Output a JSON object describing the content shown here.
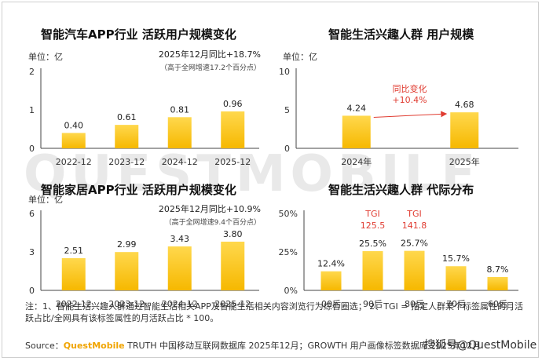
{
  "watermark": "QUESTMOBILE",
  "colors": {
    "bar_top": "#ffd84d",
    "bar_bottom": "#f6b800",
    "axis": "#444444",
    "note_red": "#e03c31",
    "arrow": "#e03c31"
  },
  "chart_data": [
    {
      "type": "bar",
      "title": "智能汽车APP行业 活跃用户规模变化",
      "unit_label": "单位：亿",
      "categories": [
        "2022-12",
        "2023-12",
        "2024-12",
        "2025-12"
      ],
      "values": [
        0.4,
        0.61,
        0.81,
        0.96
      ],
      "value_labels": [
        "0.40",
        "0.61",
        "0.81",
        "0.96"
      ],
      "yticks": [
        "0",
        "1",
        "2"
      ],
      "ylim": [
        0,
        2
      ],
      "annotation": "2025年12月同比+18.7%",
      "annotation_sub": "（高于全网增速17.2个百分点）"
    },
    {
      "type": "bar",
      "title": "智能生活兴趣人群 用户规模",
      "unit_label": "单位：亿",
      "categories": [
        "2024年",
        "2025年"
      ],
      "values": [
        4.24,
        4.68
      ],
      "value_labels": [
        "4.24",
        "4.68"
      ],
      "yticks": [
        "0",
        "5",
        "10"
      ],
      "ylim": [
        0,
        10
      ],
      "annotation": "同比变化",
      "annotation_sub": "+10.4%"
    },
    {
      "type": "bar",
      "title": "智能家居APP行业 活跃用户规模变化",
      "unit_label": "单位：亿",
      "categories": [
        "2022-12",
        "2023-12",
        "2024-12",
        "2025-12"
      ],
      "values": [
        2.51,
        2.99,
        3.43,
        3.8
      ],
      "value_labels": [
        "2.51",
        "2.99",
        "3.43",
        "3.80"
      ],
      "yticks": [
        "0",
        "3",
        "6"
      ],
      "ylim": [
        0,
        6
      ],
      "annotation": "2025年12月同比+10.9%",
      "annotation_sub": "（高于全网增速9.4个百分点）"
    },
    {
      "type": "bar",
      "title": "智能生活兴趣人群 代际分布",
      "categories": [
        "00后",
        "90后",
        "80后",
        "70后",
        "60后"
      ],
      "values": [
        12.4,
        25.5,
        25.7,
        15.7,
        8.7
      ],
      "value_labels": [
        "12.4%",
        "25.5%",
        "25.7%",
        "15.7%",
        "8.7%"
      ],
      "yticks": [
        "0%",
        "25%",
        "50%"
      ],
      "ylim": [
        0,
        50
      ],
      "tgi": [
        {
          "label": "TGI",
          "value": "125.5",
          "category": "90后"
        },
        {
          "label": "TGI",
          "value": "141.8",
          "category": "80后"
        }
      ]
    }
  ],
  "notes": "注：1、智能生活兴趣人群通过智能生活相关APP及智能生活相关内容浏览行为综合圈选；  2、TGI = 指定人群某个标签属性的月活跃占比/全网具有该标签属性的月活跃占比 * 100。",
  "source": {
    "prefix": "Source：",
    "brand": "QuestMobile",
    "text": " TRUTH 中国移动互联网数据库 2025年12月；GROWTH 用户画像标签数据库 2025年12月"
  },
  "credit": "搜狐号@QuestMobile"
}
